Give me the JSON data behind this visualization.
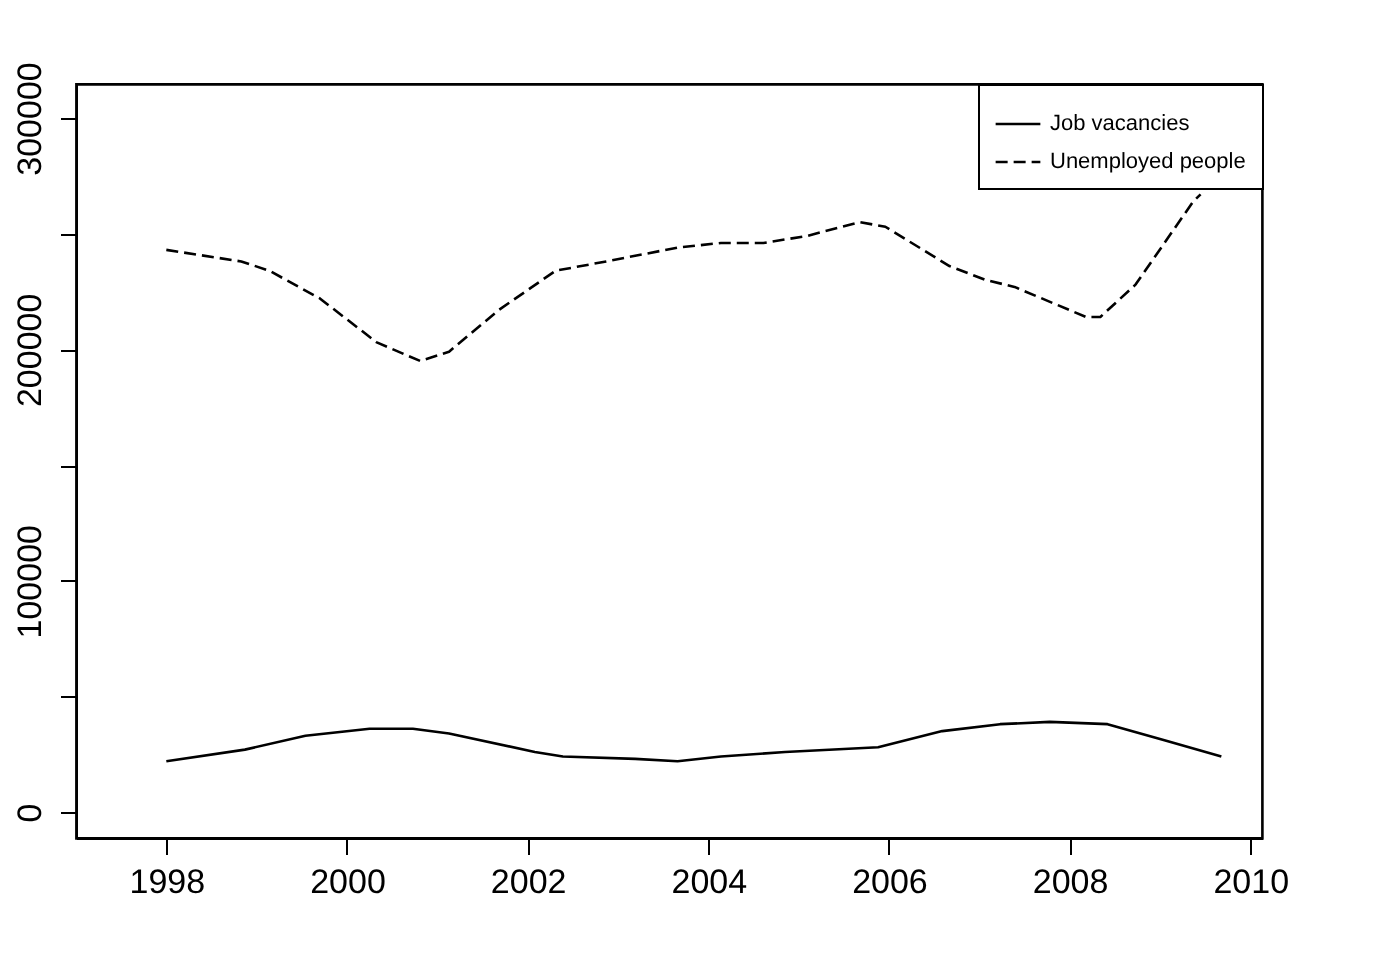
{
  "chart_data": {
    "type": "line",
    "legend": "top right",
    "grid": false,
    "marker": "none",
    "xlim": [
      1997.0,
      2010.13
    ],
    "ylim": [
      -11200,
      314700
    ],
    "xticks": [
      1998,
      2000,
      2002,
      2004,
      2006,
      2008,
      2010
    ],
    "yticks": [
      0,
      {
        "value": 50000,
        "label": null
      },
      100000,
      {
        "value": 150000,
        "label": null
      },
      200000,
      {
        "value": 250000,
        "label": null
      },
      300000
    ],
    "series": [
      {
        "name": "Job vacancies",
        "color": "#000000",
        "line_style": "solid",
        "x": [
          1998.0,
          1998.87,
          1999.54,
          2000.25,
          2000.73,
          2001.13,
          2002.08,
          2002.39,
          2003.19,
          2003.66,
          2004.14,
          2004.85,
          2005.88,
          2006.59,
          2007.23,
          2007.78,
          2008.42,
          2009.05,
          2009.68
        ],
        "values": [
          22000,
          27000,
          33000,
          36000,
          36000,
          34000,
          26000,
          24000,
          23000,
          22000,
          24000,
          26000,
          28000,
          35000,
          38000,
          39000,
          38000,
          31000,
          24000
        ]
      },
      {
        "name": "Unemployed people",
        "color": "#000000",
        "line_style": "dashed",
        "x": [
          1998.0,
          1998.83,
          1999.14,
          1999.7,
          2000.33,
          2000.81,
          2001.13,
          2001.68,
          2002.31,
          2002.87,
          2003.66,
          2004.14,
          2004.61,
          2005.09,
          2005.68,
          2005.96,
          2006.67,
          2007.07,
          2007.39,
          2008.18,
          2008.34,
          2008.73,
          2009.37,
          2009.45
        ],
        "values": [
          243000,
          238000,
          234000,
          222000,
          203000,
          195000,
          199000,
          217000,
          234000,
          238000,
          244000,
          246000,
          246000,
          249000,
          255000,
          253000,
          236000,
          230000,
          227000,
          214000,
          214000,
          228000,
          264000,
          267000
        ]
      }
    ]
  }
}
